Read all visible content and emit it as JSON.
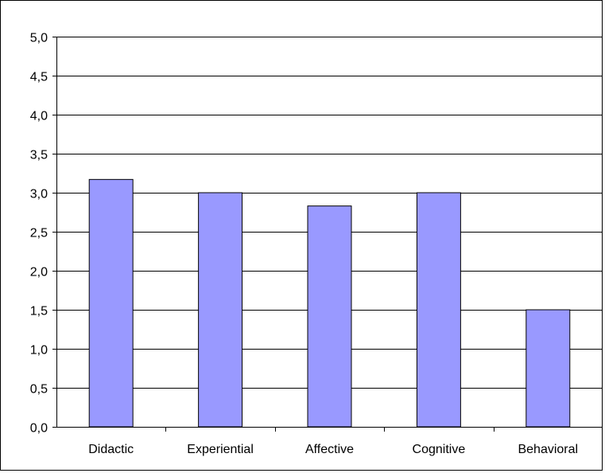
{
  "chart_data": {
    "type": "bar",
    "categories": [
      "Didactic",
      "Experiential",
      "Affective",
      "Cognitive",
      "Behavioral"
    ],
    "values": [
      3.17,
      3.0,
      2.83,
      3.0,
      1.5
    ],
    "title": "",
    "xlabel": "",
    "ylabel": "",
    "ylim": [
      0,
      5
    ],
    "yticks": [
      "0,0",
      "0,5",
      "1,0",
      "1,5",
      "2,0",
      "2,5",
      "3,0",
      "3,5",
      "4,0",
      "4,5",
      "5,0"
    ],
    "grid": true,
    "legend": "none",
    "colors": {
      "bar_fill": "#9999ff",
      "bar_stroke": "#000000",
      "grid": "#000000",
      "axis": "#000000"
    }
  }
}
